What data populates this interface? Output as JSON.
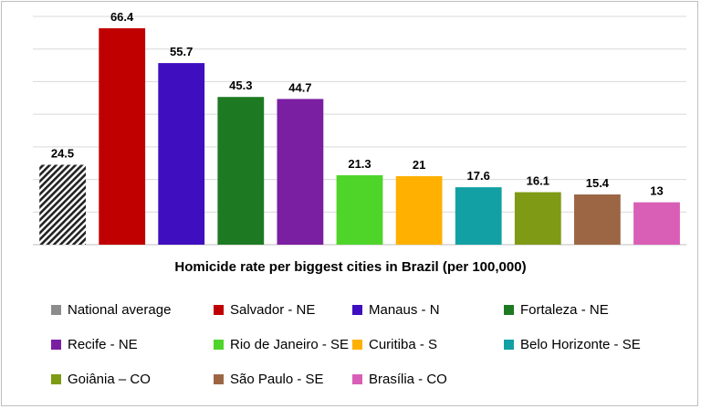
{
  "chart_data": {
    "type": "bar",
    "title": "Homicide rate per biggest cities in Brazil (per 100,000)",
    "xlabel": "",
    "ylabel": "",
    "ylim": [
      0,
      70
    ],
    "grid": true,
    "legend_position": "bottom",
    "categories": [
      "National average",
      "Salvador - NE",
      "Manaus - N",
      "Fortaleza - NE",
      "Recife - NE",
      "Rio de Janeiro - SE",
      "Curitiba - S",
      "Belo Horizonte - SE",
      "Goiânia – CO",
      "São Paulo - SE",
      "Brasília - CO"
    ],
    "values": [
      24.5,
      66.4,
      55.7,
      45.3,
      44.7,
      21.3,
      21,
      17.6,
      16.1,
      15.4,
      13
    ],
    "value_labels": [
      "24.5",
      "66.4",
      "55.7",
      "45.3",
      "44.7",
      "21.3",
      "21",
      "17.6",
      "16.1",
      "15.4",
      "13"
    ],
    "colors": [
      "hatched",
      "#c00000",
      "#3f0fbf",
      "#1e7a22",
      "#7b1fa2",
      "#4fd52a",
      "#ffb000",
      "#12a0a4",
      "#7f9a14",
      "#9c6644",
      "#d95eb6"
    ]
  }
}
